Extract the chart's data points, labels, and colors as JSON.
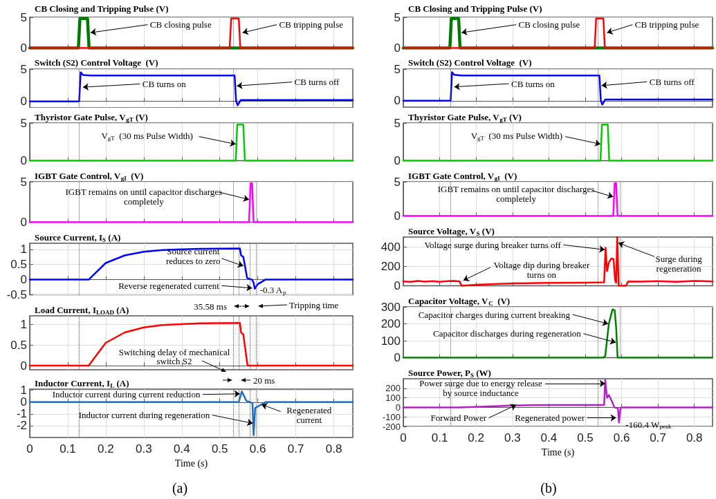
{
  "chart_data": [
    {
      "type": "line",
      "title": "CB Closing and Tripping Pulse (V)",
      "xlim": [
        0,
        0.85
      ],
      "xticks": [
        0,
        0.1,
        0.2,
        0.3,
        0.4,
        0.5,
        0.6,
        0.7,
        0.8
      ],
      "ylim": [
        0,
        5
      ],
      "yticks": [
        0,
        5
      ],
      "grid": true,
      "marker": "none",
      "tick_labels": "y",
      "series": [
        {
          "color": "#007a00",
          "x": [
            0,
            0.128,
            0.132,
            0.152,
            0.156,
            0.85
          ],
          "values": [
            0,
            0,
            4.8,
            4.8,
            0,
            0
          ]
        },
        {
          "color": "#ff0000",
          "x": [
            0,
            0.526,
            0.53,
            0.55,
            0.554,
            0.85
          ],
          "values": [
            0,
            0,
            4.8,
            4.8,
            0,
            0
          ]
        }
      ],
      "ref_lines": [
        {
          "axis": "x",
          "value": 0.535,
          "line_style": "dotted"
        }
      ],
      "annotations": [
        {
          "text": "CB closing pulse",
          "x": 0.16,
          "y": 2.5
        },
        {
          "text": "CB tripping pulse",
          "x": 0.56,
          "y": 2.5
        }
      ]
    },
    {
      "type": "line",
      "title": "Switch (S2) Control Voltage  (V)",
      "xlim": [
        0,
        0.85
      ],
      "xticks": [
        0,
        0.1,
        0.2,
        0.3,
        0.4,
        0.5,
        0.6,
        0.7,
        0.8
      ],
      "ylim": [
        -1,
        5
      ],
      "yticks": [
        0,
        5
      ],
      "grid": true,
      "marker": "none",
      "tick_labels": "y",
      "series": [
        {
          "color": "#0000ff",
          "x": [
            0,
            0.13,
            0.134,
            0.14,
            0.16,
            0.539,
            0.543,
            0.547,
            0.555,
            0.85
          ],
          "values": [
            0,
            0,
            4.5,
            4.1,
            4,
            4,
            0,
            -0.6,
            0.2,
            0.2
          ]
        }
      ],
      "ref_lines": [
        {
          "axis": "x",
          "value": 0.13,
          "line_style": "dotted"
        },
        {
          "axis": "x",
          "value": 0.535,
          "line_style": "dotted"
        }
      ],
      "annotations": [
        {
          "text": "CB turns on",
          "x": 0.14,
          "y": 2.2
        },
        {
          "text": "CB turns off",
          "x": 0.545,
          "y": 2.4
        }
      ]
    },
    {
      "type": "line",
      "title": "Thyristor Gate Pulse, V$_{gT}$ (V)",
      "xlim": [
        0,
        0.85
      ],
      "xticks": [
        0,
        0.1,
        0.2,
        0.3,
        0.4,
        0.5,
        0.6,
        0.7,
        0.8
      ],
      "ylim": [
        0,
        5
      ],
      "yticks": [
        0,
        5
      ],
      "grid": true,
      "marker": "none",
      "tick_labels": "y",
      "series": [
        {
          "color": "#00cc00",
          "x": [
            0,
            0.542,
            0.546,
            0.562,
            0.566,
            0.85
          ],
          "values": [
            0,
            0,
            4.8,
            4.8,
            0,
            0
          ]
        }
      ],
      "ref_lines": [
        {
          "axis": "x",
          "value": 0.13,
          "line_style": "dotted"
        },
        {
          "axis": "x",
          "value": 0.535,
          "line_style": "dotted"
        }
      ],
      "annotations": [
        {
          "text": "V$_{gT}$  (30 ms Pulse Width)",
          "x": 0.542,
          "y": 2.2
        }
      ]
    },
    {
      "type": "line",
      "title": "IGBT Gate Control, V$_{gI}$  (V)",
      "xlim": [
        0,
        0.85
      ],
      "xticks": [
        0,
        0.1,
        0.2,
        0.3,
        0.4,
        0.5,
        0.6,
        0.7,
        0.8
      ],
      "ylim": [
        0,
        5
      ],
      "yticks": [
        0,
        5
      ],
      "grid": true,
      "marker": "none",
      "tick_labels": "y",
      "series": [
        {
          "color": "#ff00ff",
          "x": [
            0,
            0.577,
            0.581,
            0.585,
            0.589,
            0.85
          ],
          "values": [
            0,
            0,
            4.8,
            4.8,
            0,
            0
          ]
        }
      ],
      "ref_lines": [
        {
          "axis": "x",
          "value": 0.13,
          "line_style": "dotted"
        },
        {
          "axis": "x",
          "value": 0.535,
          "line_style": "dotted"
        },
        {
          "axis": "x",
          "value": 0.595,
          "line_style": "dotted"
        }
      ],
      "annotations": [
        {
          "text": "IGBT remains on until capacitor discharges\ncompletely",
          "x": 0.577,
          "y": 2.8
        }
      ]
    },
    {
      "type": "line",
      "title": "Source Current, I$_{S}$ (A)",
      "xlim": [
        0,
        0.85
      ],
      "xticks": [
        0,
        0.1,
        0.2,
        0.3,
        0.4,
        0.5,
        0.6,
        0.7,
        0.8
      ],
      "ylim": [
        -0.5,
        1.2
      ],
      "yticks": [
        -0.5,
        0,
        0.5,
        1
      ],
      "grid": true,
      "marker": "none",
      "tick_labels": "y",
      "series": [
        {
          "color": "#0000ff",
          "x": [
            0,
            0.155,
            0.2,
            0.25,
            0.3,
            0.35,
            0.4,
            0.45,
            0.553,
            0.556,
            0.562,
            0.572,
            0.585,
            0.589,
            0.592,
            0.6,
            0.62,
            0.85
          ],
          "values": [
            0,
            0,
            0.55,
            0.8,
            0.92,
            0.98,
            1,
            1.02,
            1.03,
            0.8,
            0.75,
            0.05,
            0,
            -0.1,
            -0.3,
            -0.15,
            0,
            0
          ]
        }
      ],
      "ref_lines": [
        {
          "axis": "x",
          "value": 0.13,
          "line_style": "dotted"
        },
        {
          "axis": "x",
          "value": 0.535,
          "line_style": "dotted"
        },
        {
          "axis": "x",
          "value": 0.55,
          "line_style": "dotted"
        },
        {
          "axis": "x",
          "value": 0.58,
          "line_style": "dotted"
        },
        {
          "axis": "x",
          "value": 0.595,
          "line_style": "dotted"
        }
      ],
      "annotations": [
        {
          "text": "Source current\nreduces to zero",
          "x": 0.562,
          "y": 0.45
        },
        {
          "text": "Reverse regenerated current",
          "x": 0.585,
          "y": -0.28
        },
        {
          "text": "-0.3 A$_{p}$",
          "x": 0.592,
          "y": -0.3
        }
      ]
    },
    {
      "type": "line",
      "title": "Load Current, I$_{LOAD}$ (A)",
      "xlim": [
        0,
        0.85
      ],
      "xticks": [
        0,
        0.1,
        0.2,
        0.3,
        0.4,
        0.5,
        0.6,
        0.7,
        0.8
      ],
      "ylim": [
        -0.1,
        1.2
      ],
      "yticks": [
        0,
        0.5,
        1
      ],
      "grid": true,
      "marker": "none",
      "tick_labels": "y",
      "series": [
        {
          "color": "#ff0000",
          "x": [
            0,
            0.155,
            0.2,
            0.25,
            0.3,
            0.35,
            0.4,
            0.45,
            0.553,
            0.556,
            0.562,
            0.573,
            0.85
          ],
          "values": [
            0,
            0,
            0.55,
            0.8,
            0.92,
            0.98,
            1,
            1.02,
            1.03,
            0.8,
            0.75,
            0,
            0
          ]
        }
      ],
      "ref_lines": [
        {
          "axis": "x",
          "value": 0.13,
          "line_style": "dotted"
        },
        {
          "axis": "x",
          "value": 0.535,
          "line_style": "dotted"
        },
        {
          "axis": "x",
          "value": 0.55,
          "line_style": "dotted"
        },
        {
          "axis": "x",
          "value": 0.58,
          "line_style": "dotted"
        },
        {
          "axis": "x",
          "value": 0.595,
          "line_style": "dotted"
        }
      ],
      "annotations": [
        "Switching delay of mechanical\nswitch S2",
        "35.58 ms",
        "Tripping time"
      ]
    },
    {
      "type": "line",
      "title": "Inductor Current, I$_{L}$ (A)",
      "xlabel": "Time (s)",
      "xlim": [
        0,
        0.85
      ],
      "xticks": [
        0,
        0.1,
        0.2,
        0.3,
        0.4,
        0.5,
        0.6,
        0.7,
        0.8
      ],
      "ylim": [
        -3,
        1.1
      ],
      "yticks": [
        -2,
        -1,
        0,
        1
      ],
      "grid": true,
      "marker": "none",
      "series": [
        {
          "color": "#1f6fbf",
          "x": [
            0,
            0.55,
            0.558,
            0.57,
            0.58,
            0.586,
            0.589,
            0.593,
            0.61,
            0.62,
            0.85
          ],
          "values": [
            0,
            0,
            0.9,
            0.1,
            0,
            -0.1,
            -2.8,
            -0.5,
            -0.2,
            0,
            0
          ]
        }
      ],
      "ref_lines": [
        {
          "axis": "x",
          "value": 0.13,
          "line_style": "dotted"
        },
        {
          "axis": "x",
          "value": 0.535,
          "line_style": "dotted"
        },
        {
          "axis": "x",
          "value": 0.55,
          "line_style": "dotted"
        },
        {
          "axis": "x",
          "value": 0.58,
          "line_style": "dotted"
        },
        {
          "axis": "x",
          "value": 0.595,
          "line_style": "dotted"
        }
      ],
      "annotations": [
        {
          "text": "Inductor current during current reduction",
          "x": 0.553,
          "y": 0.7
        },
        {
          "text": "Inductor current during regeneration",
          "x": 0.587,
          "y": -1.8
        },
        {
          "text": "Regenerated\ncurrent",
          "x": 0.61,
          "y": -0.2
        },
        "20 ms",
        "(a)"
      ]
    },
    {
      "type": "line",
      "title": "CB Closing and Tripping Pulse (V)",
      "xlim": [
        0,
        0.85
      ],
      "xticks": [
        0,
        0.1,
        0.2,
        0.3,
        0.4,
        0.5,
        0.6,
        0.7,
        0.8
      ],
      "ylim": [
        0,
        5
      ],
      "yticks": [
        0,
        5
      ],
      "grid": true,
      "marker": "none",
      "tick_labels": "y",
      "series": [
        {
          "color": "#007a00",
          "x": [
            0,
            0.128,
            0.132,
            0.152,
            0.156,
            0.85
          ],
          "values": [
            0,
            0,
            4.8,
            4.8,
            0,
            0
          ]
        },
        {
          "color": "#ff0000",
          "x": [
            0,
            0.526,
            0.53,
            0.55,
            0.554,
            0.85
          ],
          "values": [
            0,
            0,
            4.8,
            4.8,
            0,
            0
          ]
        }
      ],
      "ref_lines": [
        {
          "axis": "x",
          "value": 0.535,
          "line_style": "dotted"
        }
      ],
      "annotations": [
        {
          "text": "CB closing pulse",
          "x": 0.16,
          "y": 2.5
        },
        {
          "text": "CB tripping pulse",
          "x": 0.56,
          "y": 2.5
        }
      ]
    },
    {
      "type": "line",
      "title": "Switch (S2) Control Voltage  (V)",
      "xlim": [
        0,
        0.85
      ],
      "xticks": [
        0,
        0.1,
        0.2,
        0.3,
        0.4,
        0.5,
        0.6,
        0.7,
        0.8
      ],
      "ylim": [
        -1,
        5
      ],
      "yticks": [
        0,
        5
      ],
      "grid": true,
      "marker": "none",
      "tick_labels": "y",
      "series": [
        {
          "color": "#0000ff",
          "x": [
            0,
            0.13,
            0.134,
            0.14,
            0.16,
            0.539,
            0.543,
            0.547,
            0.555,
            0.85
          ],
          "values": [
            0,
            0,
            4.5,
            4.1,
            4,
            4,
            0,
            -0.6,
            0.2,
            0.2
          ]
        }
      ],
      "ref_lines": [
        {
          "axis": "x",
          "value": 0.13,
          "line_style": "dotted"
        },
        {
          "axis": "x",
          "value": 0.535,
          "line_style": "dotted"
        }
      ],
      "annotations": [
        {
          "text": "CB turns on",
          "x": 0.14,
          "y": 2.2
        },
        {
          "text": "CB turns off",
          "x": 0.545,
          "y": 2.4
        }
      ]
    },
    {
      "type": "line",
      "title": "Thyristor Gate Pulse, V$_{gT}$ (V)",
      "xlim": [
        0,
        0.85
      ],
      "xticks": [
        0,
        0.1,
        0.2,
        0.3,
        0.4,
        0.5,
        0.6,
        0.7,
        0.8
      ],
      "ylim": [
        0,
        5
      ],
      "yticks": [
        0,
        5
      ],
      "grid": true,
      "marker": "none",
      "tick_labels": "y",
      "series": [
        {
          "color": "#00cc00",
          "x": [
            0,
            0.542,
            0.546,
            0.562,
            0.566,
            0.85
          ],
          "values": [
            0,
            0,
            4.8,
            4.8,
            0,
            0
          ]
        }
      ],
      "ref_lines": [
        {
          "axis": "x",
          "value": 0.13,
          "line_style": "dotted"
        },
        {
          "axis": "x",
          "value": 0.535,
          "line_style": "dotted"
        }
      ],
      "annotations": [
        {
          "text": "V$_{gT}$  (30 ms Pulse Width)",
          "x": 0.542,
          "y": 2.2
        }
      ]
    },
    {
      "type": "line",
      "title": "IGBT Gate Control, V$_{gI}$  (V)",
      "xlim": [
        0,
        0.85
      ],
      "xticks": [
        0,
        0.1,
        0.2,
        0.3,
        0.4,
        0.5,
        0.6,
        0.7,
        0.8
      ],
      "ylim": [
        0,
        5
      ],
      "yticks": [
        0,
        5
      ],
      "grid": true,
      "marker": "none",
      "tick_labels": "y",
      "series": [
        {
          "color": "#ff00ff",
          "x": [
            0,
            0.577,
            0.581,
            0.585,
            0.589,
            0.85
          ],
          "values": [
            0,
            0,
            4.8,
            4.8,
            0,
            0
          ]
        }
      ],
      "ref_lines": [
        {
          "axis": "x",
          "value": 0.13,
          "line_style": "dotted"
        },
        {
          "axis": "x",
          "value": 0.535,
          "line_style": "dotted"
        },
        {
          "axis": "x",
          "value": 0.595,
          "line_style": "dotted"
        }
      ],
      "annotations": [
        {
          "text": "IGBT remains on until capacitor discharges\ncompletely",
          "x": 0.577,
          "y": 2.8
        }
      ]
    },
    {
      "type": "line",
      "title": "Source Voltage, V$_{S}$ (V)",
      "xlim": [
        0,
        0.85
      ],
      "xticks": [
        0,
        0.1,
        0.2,
        0.3,
        0.4,
        0.5,
        0.6,
        0.7,
        0.8
      ],
      "ylim": [
        0,
        500
      ],
      "yticks": [
        0,
        200,
        400
      ],
      "grid": true,
      "marker": "none",
      "tick_labels": "y",
      "series": [
        {
          "color": "#ff0000",
          "x": [
            0,
            0.02,
            0.04,
            0.06,
            0.08,
            0.1,
            0.12,
            0.14,
            0.155,
            0.16,
            0.2,
            0.3,
            0.4,
            0.5,
            0.552,
            0.556,
            0.56,
            0.565,
            0.572,
            0.578,
            0.582,
            0.585,
            0.588,
            0.592,
            0.612,
            0.618,
            0.65,
            0.7,
            0.75,
            0.8,
            0.85
          ],
          "values": [
            45,
            40,
            50,
            42,
            48,
            40,
            47,
            50,
            45,
            0,
            10,
            25,
            30,
            32,
            35,
            390,
            150,
            240,
            280,
            275,
            60,
            30,
            500,
            0,
            0,
            45,
            42,
            48,
            40,
            50,
            45
          ]
        }
      ],
      "ref_lines": [
        {
          "axis": "x",
          "value": 0.13,
          "line_style": "dotted"
        },
        {
          "axis": "x",
          "value": 0.535,
          "line_style": "dotted"
        },
        {
          "axis": "x",
          "value": 0.595,
          "line_style": "dotted"
        }
      ],
      "annotations": [
        {
          "text": "Voltage surge during breaker turns off",
          "x": 0.554,
          "y": 370
        },
        {
          "text": "Voltage dip during breaker\nturns on",
          "x": 0.165,
          "y": 55
        },
        {
          "text": "Surge during\nregeneration",
          "x": 0.591,
          "y": 440
        }
      ]
    },
    {
      "type": "line",
      "title": "Capacitor Voltage, V$_{C}$  (V)",
      "xlim": [
        0,
        0.85
      ],
      "xticks": [
        0,
        0.1,
        0.2,
        0.3,
        0.4,
        0.5,
        0.6,
        0.7,
        0.8
      ],
      "ylim": [
        0,
        300
      ],
      "yticks": [
        0,
        100,
        200,
        300
      ],
      "grid": true,
      "marker": "none",
      "tick_labels": "y",
      "series": [
        {
          "color": "#008000",
          "x": [
            0,
            0.55,
            0.555,
            0.565,
            0.575,
            0.581,
            0.585,
            0.589,
            0.85
          ],
          "values": [
            0,
            0,
            10,
            200,
            285,
            280,
            180,
            0,
            0
          ]
        }
      ],
      "ref_lines": [
        {
          "axis": "x",
          "value": 0.13,
          "line_style": "dotted"
        },
        {
          "axis": "x",
          "value": 0.535,
          "line_style": "dotted"
        },
        {
          "axis": "x",
          "value": 0.595,
          "line_style": "dotted"
        }
      ],
      "annotations": [
        {
          "text": "Capacitor charges during current breaking",
          "x": 0.563,
          "y": 200
        },
        {
          "text": "Capacitor discharges during regeneration",
          "x": 0.584,
          "y": 90
        }
      ]
    },
    {
      "type": "line",
      "title": "Source Power, P$_{S}$ (W)",
      "xlabel": "Time (s)",
      "xlim": [
        0,
        0.85
      ],
      "xticks": [
        0,
        0.1,
        0.2,
        0.3,
        0.4,
        0.5,
        0.6,
        0.7,
        0.8
      ],
      "ylim": [
        -200,
        300
      ],
      "yticks": [
        -200,
        -100,
        0,
        100,
        200
      ],
      "grid": true,
      "marker": "none",
      "series": [
        {
          "color": "#b31fc4",
          "x": [
            0,
            0.15,
            0.2,
            0.3,
            0.4,
            0.5,
            0.552,
            0.555,
            0.56,
            0.565,
            0.575,
            0.58,
            0.59,
            0.593,
            0.597,
            0.6,
            0.85
          ],
          "values": [
            0,
            0,
            5,
            20,
            25,
            25,
            25,
            290,
            100,
            130,
            50,
            0,
            -10,
            -160,
            -10,
            0,
            0
          ]
        }
      ],
      "ref_lines": [
        {
          "axis": "x",
          "value": 0.13,
          "line_style": "dotted"
        },
        {
          "axis": "x",
          "value": 0.535,
          "line_style": "dotted"
        }
      ],
      "annotations": [
        {
          "text": "Power surge due to energy release\nby source inductance",
          "x": 0.555,
          "y": 250
        },
        {
          "text": "Forward Power",
          "x": 0.31,
          "y": 25
        },
        {
          "text": "Regenerated power",
          "x": 0.585,
          "y": -110
        },
        {
          "text": "-160.4 W$_{peak}$",
          "x": 0.593,
          "y": -160
        },
        "(b)"
      ]
    }
  ]
}
